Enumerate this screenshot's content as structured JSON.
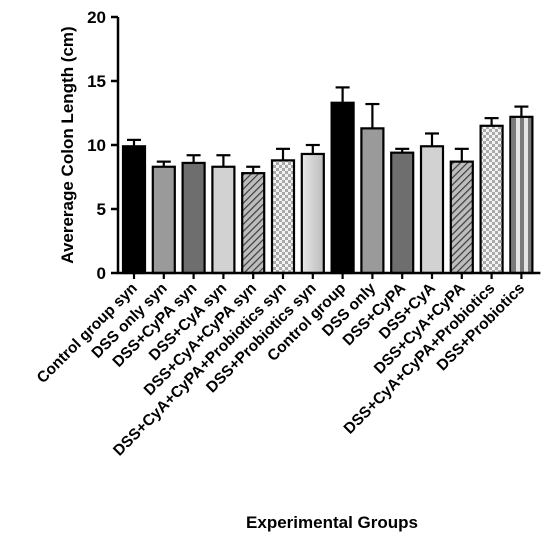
{
  "chart_data": {
    "type": "bar",
    "title": "",
    "ylabel": "Avererage Colon Length (cm)",
    "xlabel": "Experimental Groups",
    "ylim": [
      0,
      20
    ],
    "yticks": [
      0,
      5,
      10,
      15,
      20
    ],
    "grid": false,
    "legend": "none",
    "categories": [
      "Control group syn",
      "DSS only syn",
      "DSS+CyPA syn",
      "DSS+CyA syn",
      "DSS+CyA+CyPA syn",
      "DSS+CyA+CyPA+Probiotics syn",
      "DSS+Probiotics syn",
      "Control group",
      "DSS only",
      "DSS+CyPA",
      "DSS+CyA",
      "DSS+CyA+CyPA",
      "DSS+CyA+CyPA+Probiotics",
      "DSS+Probiotics"
    ],
    "values": [
      9.9,
      8.3,
      8.6,
      8.3,
      7.8,
      8.8,
      9.3,
      13.3,
      11.3,
      9.4,
      9.9,
      8.7,
      11.5,
      12.2
    ],
    "errors": [
      0.5,
      0.4,
      0.6,
      0.9,
      0.5,
      0.9,
      0.7,
      1.2,
      1.9,
      0.3,
      1.0,
      1.0,
      0.6,
      0.8
    ],
    "fills": [
      "black",
      "mid-gray",
      "dark-gray",
      "light-gray",
      "diagonal-hatch",
      "checker",
      "light-gray-gradient",
      "black",
      "mid-gray",
      "dark-gray",
      "light-gray",
      "diagonal-hatch",
      "checker",
      "striped"
    ],
    "colors": {
      "black": "#000000",
      "mid_gray": "#9a9a9a",
      "dark_gray": "#6e6e6e",
      "light_gray": "#d2d2d2"
    }
  }
}
